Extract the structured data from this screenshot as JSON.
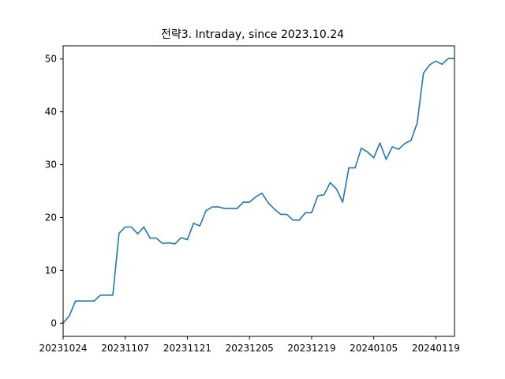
{
  "chart_data": {
    "type": "line",
    "title": "전략3. Intraday, since 2023.10.24",
    "xlabel": "",
    "ylabel": "",
    "ylim": [
      -2.5,
      52.5
    ],
    "y_ticks": [
      0,
      10,
      20,
      30,
      40,
      50
    ],
    "x_tick_labels": [
      "20231024",
      "20231107",
      "20231121",
      "20231205",
      "20231219",
      "20240105",
      "20240119"
    ],
    "x_tick_index": [
      0,
      10,
      20,
      30,
      40,
      50,
      60
    ],
    "grid": false,
    "legend": "none",
    "line_color": "#1f77b4",
    "series": [
      {
        "values": [
          0.0,
          1.4,
          4.2,
          4.2,
          4.2,
          4.2,
          5.3,
          5.3,
          5.3,
          17.0,
          18.2,
          18.2,
          16.9,
          18.2,
          16.1,
          16.1,
          15.1,
          15.2,
          15.0,
          16.2,
          15.8,
          18.9,
          18.4,
          21.3,
          22.0,
          22.0,
          21.7,
          21.7,
          21.7,
          22.9,
          22.9,
          23.9,
          24.6,
          22.8,
          21.6,
          20.6,
          20.6,
          19.5,
          19.5,
          20.9,
          20.9,
          24.1,
          24.3,
          26.6,
          25.4,
          22.9,
          29.4,
          29.4,
          33.1,
          32.4,
          31.3,
          34.1,
          31.0,
          33.4,
          32.9,
          34.0,
          34.6,
          37.9,
          47.3,
          48.9,
          49.6,
          49.0,
          50.1,
          50.1
        ]
      }
    ]
  }
}
